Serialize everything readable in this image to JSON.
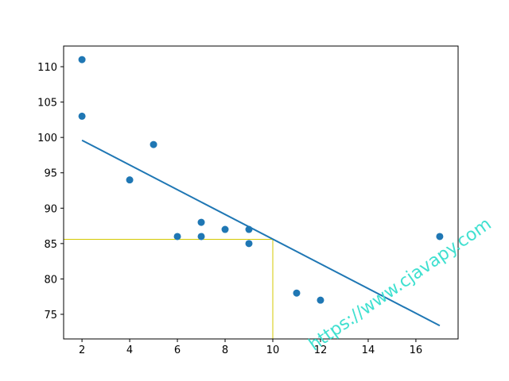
{
  "chart_data": {
    "type": "scatter",
    "x": [
      5,
      7,
      8,
      7,
      2,
      17,
      2,
      9,
      4,
      11,
      12,
      9,
      6
    ],
    "values": [
      99,
      86,
      87,
      88,
      111,
      86,
      103,
      87,
      94,
      78,
      77,
      85,
      86
    ],
    "color": "#1f77b4",
    "fit": {
      "x": [
        2,
        17
      ],
      "values": [
        99.6,
        73.4
      ],
      "color": "#1f77b4"
    },
    "prediction": {
      "x": 10,
      "y": 85.6,
      "color": "#d4c900"
    },
    "xlim": [
      1.23,
      17.77
    ],
    "ylim": [
      71.52,
      112.92
    ],
    "xticks": [
      2,
      4,
      6,
      8,
      10,
      12,
      14,
      16
    ],
    "yticks": [
      75,
      80,
      85,
      90,
      95,
      100,
      105,
      110
    ],
    "watermark": "https://www.cjavapy.com",
    "watermark_color": "#40e0d0"
  }
}
